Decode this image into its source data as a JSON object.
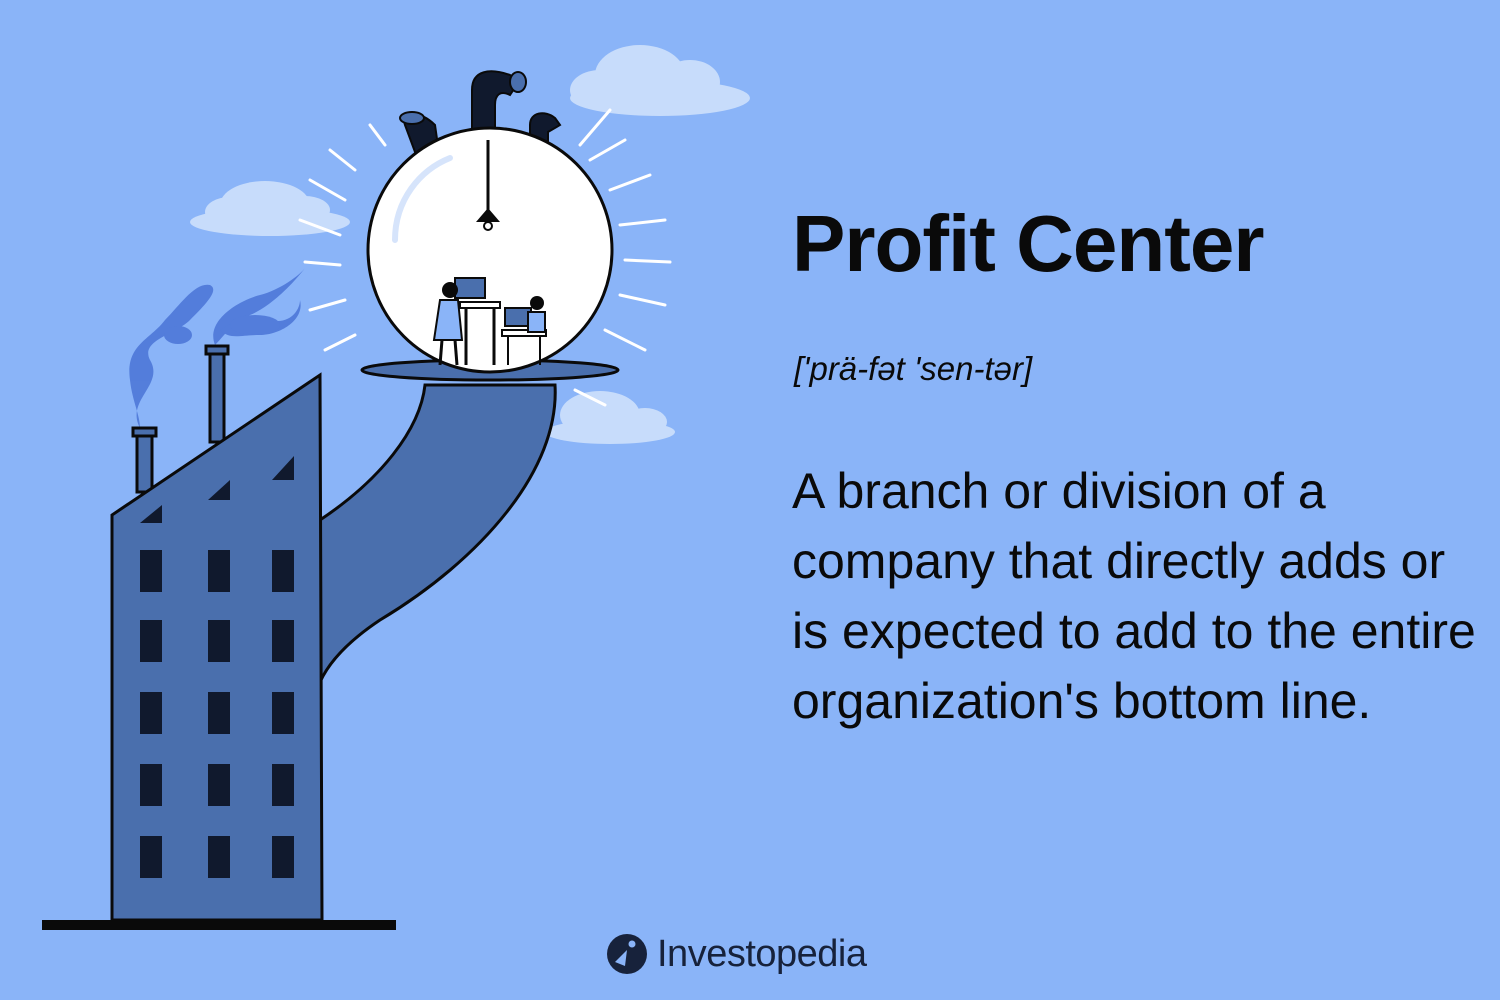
{
  "title": "Profit Center",
  "pronunciation": "['prä-fət 'sen-tər]",
  "definition": "A branch or division of a company that directly adds or is expected to add to the entire organization's bottom line.",
  "brand": {
    "name": "Investopedia",
    "icon": "investopedia-logo-icon"
  },
  "colors": {
    "background": "#8ab4f8",
    "building": "#4a6fad",
    "dark": "#17223b",
    "bulb": "#ffffff"
  },
  "illustration": {
    "icons": [
      "building-icon",
      "lightbulb-icon",
      "smoke-icon",
      "cloud-icon",
      "workers-icon"
    ]
  }
}
